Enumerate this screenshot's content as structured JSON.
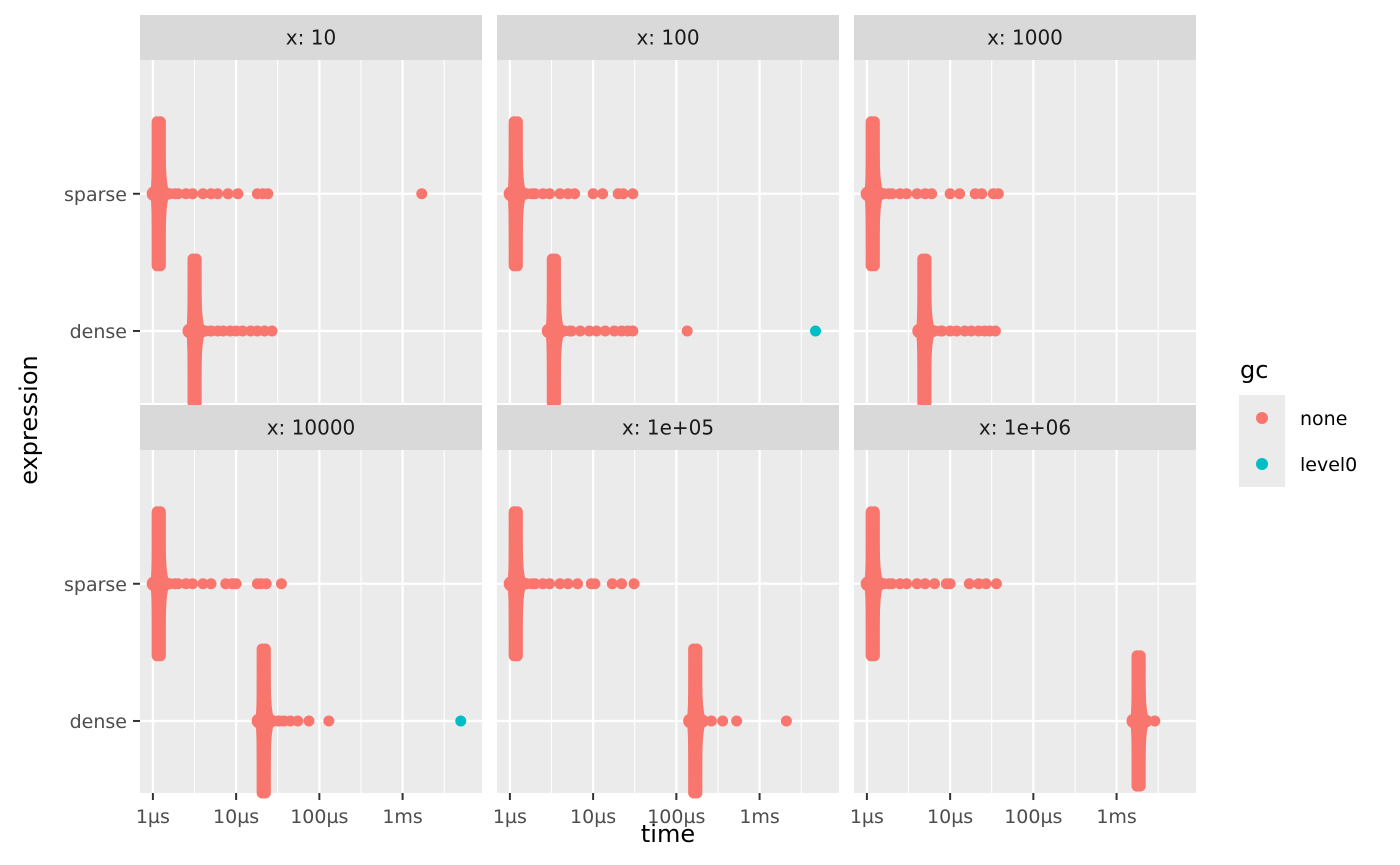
{
  "chart_data": {
    "type": "scatter",
    "facet_by": "x",
    "xlabel": "time",
    "ylabel": "expression",
    "x_scale": "log10",
    "x_unit": "seconds",
    "xlim": [
      7e-07,
      0.009
    ],
    "x_ticks": [
      {
        "value": 1e-06,
        "label": "1µs"
      },
      {
        "value": 1e-05,
        "label": "10µs"
      },
      {
        "value": 0.0001,
        "label": "100µs"
      },
      {
        "value": 0.001,
        "label": "1ms"
      }
    ],
    "y_categories": [
      "sparse",
      "dense"
    ],
    "colors": {
      "none": "#F8766D",
      "level0": "#00BFC4"
    },
    "panel_bg": "#EBEBEB",
    "strip_bg": "#D9D9D9",
    "grid": true,
    "legend": {
      "title": "gc",
      "placement": "right",
      "entries": [
        {
          "key": "none",
          "label": "none"
        },
        {
          "key": "level0",
          "label": "level0"
        }
      ]
    },
    "panels": [
      {
        "label": "x: 10",
        "series": [
          {
            "expression": "sparse",
            "gc": "none",
            "cluster": 1.15e-06,
            "spread": 0.42,
            "tail": [
              1.3e-06,
              1.6e-06,
              2e-06,
              2.5e-06,
              3e-06,
              4e-06,
              5e-06,
              6e-06,
              8e-06,
              1.05e-05,
              1.8e-05,
              2.1e-05,
              2.4e-05,
              0.0017
            ]
          },
          {
            "expression": "dense",
            "gc": "none",
            "cluster": 3.1e-06,
            "spread": 0.42,
            "tail": [
              3.6e-06,
              4.3e-06,
              5e-06,
              6e-06,
              7e-06,
              8.5e-06,
              1e-05,
              1.2e-05,
              1.5e-05,
              1.8e-05,
              2.2e-05,
              2.7e-05
            ]
          }
        ]
      },
      {
        "label": "x: 100",
        "series": [
          {
            "expression": "sparse",
            "gc": "none",
            "cluster": 1.15e-06,
            "spread": 0.42,
            "tail": [
              1.3e-06,
              1.6e-06,
              2e-06,
              2.5e-06,
              3e-06,
              4e-06,
              5e-06,
              6e-06,
              1e-05,
              1.3e-05,
              2e-05,
              2.3e-05,
              3e-05
            ]
          },
          {
            "expression": "dense",
            "gc": "none",
            "cluster": 3.3e-06,
            "spread": 0.42,
            "tail": [
              3.8e-06,
              4.5e-06,
              5.5e-06,
              7e-06,
              9e-06,
              1.1e-05,
              1.4e-05,
              1.8e-05,
              2.2e-05,
              2.6e-05,
              3e-05,
              0.000135
            ]
          },
          {
            "expression": "dense",
            "gc": "level0",
            "cluster": null,
            "spread": 0,
            "tail": [
              0.0047
            ]
          }
        ]
      },
      {
        "label": "x: 1000",
        "series": [
          {
            "expression": "sparse",
            "gc": "none",
            "cluster": 1.15e-06,
            "spread": 0.42,
            "tail": [
              1.3e-06,
              1.6e-06,
              2e-06,
              2.5e-06,
              3e-06,
              4e-06,
              5e-06,
              6e-06,
              1e-05,
              1.3e-05,
              2e-05,
              2.4e-05,
              3.3e-05,
              3.8e-05
            ]
          },
          {
            "expression": "dense",
            "gc": "none",
            "cluster": 4.8e-06,
            "spread": 0.42,
            "tail": [
              5.5e-06,
              6.5e-06,
              8e-06,
              1e-05,
              1.2e-05,
              1.5e-05,
              1.8e-05,
              2.2e-05,
              2.6e-05,
              3e-05,
              3.5e-05
            ]
          }
        ]
      },
      {
        "label": "x: 10000",
        "series": [
          {
            "expression": "sparse",
            "gc": "none",
            "cluster": 1.15e-06,
            "spread": 0.42,
            "tail": [
              1.3e-06,
              1.6e-06,
              2e-06,
              2.5e-06,
              3e-06,
              4e-06,
              5e-06,
              7.5e-06,
              9e-06,
              1e-05,
              1.8e-05,
              2e-05,
              2.3e-05,
              3.5e-05
            ]
          },
          {
            "expression": "dense",
            "gc": "none",
            "cluster": 2.1e-05,
            "spread": 0.42,
            "tail": [
              2.3e-05,
              2.7e-05,
              3.2e-05,
              3.8e-05,
              4.5e-05,
              5.5e-05,
              7.5e-05,
              0.00013
            ]
          },
          {
            "expression": "dense",
            "gc": "level0",
            "cluster": null,
            "spread": 0,
            "tail": [
              0.005
            ]
          }
        ]
      },
      {
        "label": "x: 1e+05",
        "series": [
          {
            "expression": "sparse",
            "gc": "none",
            "cluster": 1.15e-06,
            "spread": 0.42,
            "tail": [
              1.3e-06,
              1.6e-06,
              2e-06,
              2.5e-06,
              3e-06,
              4e-06,
              5e-06,
              6.5e-06,
              9.5e-06,
              1.05e-05,
              1.7e-05,
              2.2e-05,
              3.1e-05
            ]
          },
          {
            "expression": "dense",
            "gc": "none",
            "cluster": 0.000165,
            "spread": 0.42,
            "tail": [
              0.00018,
              0.0002,
              0.00036,
              0.00053,
              0.0021
            ]
          }
        ]
      },
      {
        "label": "x: 1e+06",
        "series": [
          {
            "expression": "sparse",
            "gc": "none",
            "cluster": 1.15e-06,
            "spread": 0.42,
            "tail": [
              1.3e-06,
              1.6e-06,
              2e-06,
              2.5e-06,
              3e-06,
              4e-06,
              5e-06,
              6.5e-06,
              9e-06,
              1e-05,
              1.7e-05,
              2.2e-05,
              2.7e-05,
              3.6e-05
            ]
          },
          {
            "expression": "dense",
            "gc": "none",
            "cluster": 0.0018,
            "spread": 0.38,
            "tail": []
          }
        ]
      }
    ]
  }
}
